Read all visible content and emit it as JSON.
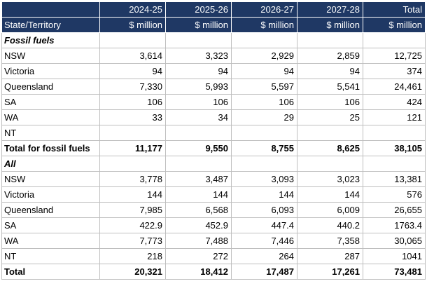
{
  "header": {
    "years": [
      "2024-25",
      "2025-26",
      "2026-27",
      "2027-28",
      "Total"
    ],
    "state_label": "State/Territory",
    "units": [
      "$ million",
      "$ million",
      "$ million",
      "$ million",
      "$ million"
    ]
  },
  "sections": [
    {
      "title": "Fossil fuels",
      "rows": [
        {
          "label": "NSW",
          "values": [
            "3,614",
            "3,323",
            "2,929",
            "2,859",
            "12,725"
          ]
        },
        {
          "label": "Victoria",
          "values": [
            "94",
            "94",
            "94",
            "94",
            "374"
          ]
        },
        {
          "label": "Queensland",
          "values": [
            "7,330",
            "5,993",
            "5,597",
            "5,541",
            "24,461"
          ]
        },
        {
          "label": "SA",
          "values": [
            "106",
            "106",
            "106",
            "106",
            "424"
          ]
        },
        {
          "label": "WA",
          "values": [
            "33",
            "34",
            "29",
            "25",
            "121"
          ]
        },
        {
          "label": "NT",
          "values": [
            "",
            "",
            "",
            "",
            ""
          ]
        }
      ],
      "total": {
        "label": "Total for fossil fuels",
        "values": [
          "11,177",
          "9,550",
          "8,755",
          "8,625",
          "38,105"
        ]
      }
    },
    {
      "title": "All",
      "rows": [
        {
          "label": "NSW",
          "values": [
            "3,778",
            "3,487",
            "3,093",
            "3,023",
            "13,381"
          ]
        },
        {
          "label": "Victoria",
          "values": [
            "144",
            "144",
            "144",
            "144",
            "576"
          ]
        },
        {
          "label": "Queensland",
          "values": [
            "7,985",
            "6,568",
            "6,093",
            "6,009",
            "26,655"
          ]
        },
        {
          "label": "SA",
          "values": [
            "422.9",
            "452.9",
            "447.4",
            "440.2",
            "1763.4"
          ]
        },
        {
          "label": "WA",
          "values": [
            "7,773",
            "7,488",
            "7,446",
            "7,358",
            "30,065"
          ]
        },
        {
          "label": "NT",
          "values": [
            "218",
            "272",
            "264",
            "287",
            "1041"
          ]
        }
      ],
      "total": {
        "label": "Total",
        "values": [
          "20,321",
          "18,412",
          "17,487",
          "17,261",
          "73,481"
        ]
      }
    }
  ]
}
